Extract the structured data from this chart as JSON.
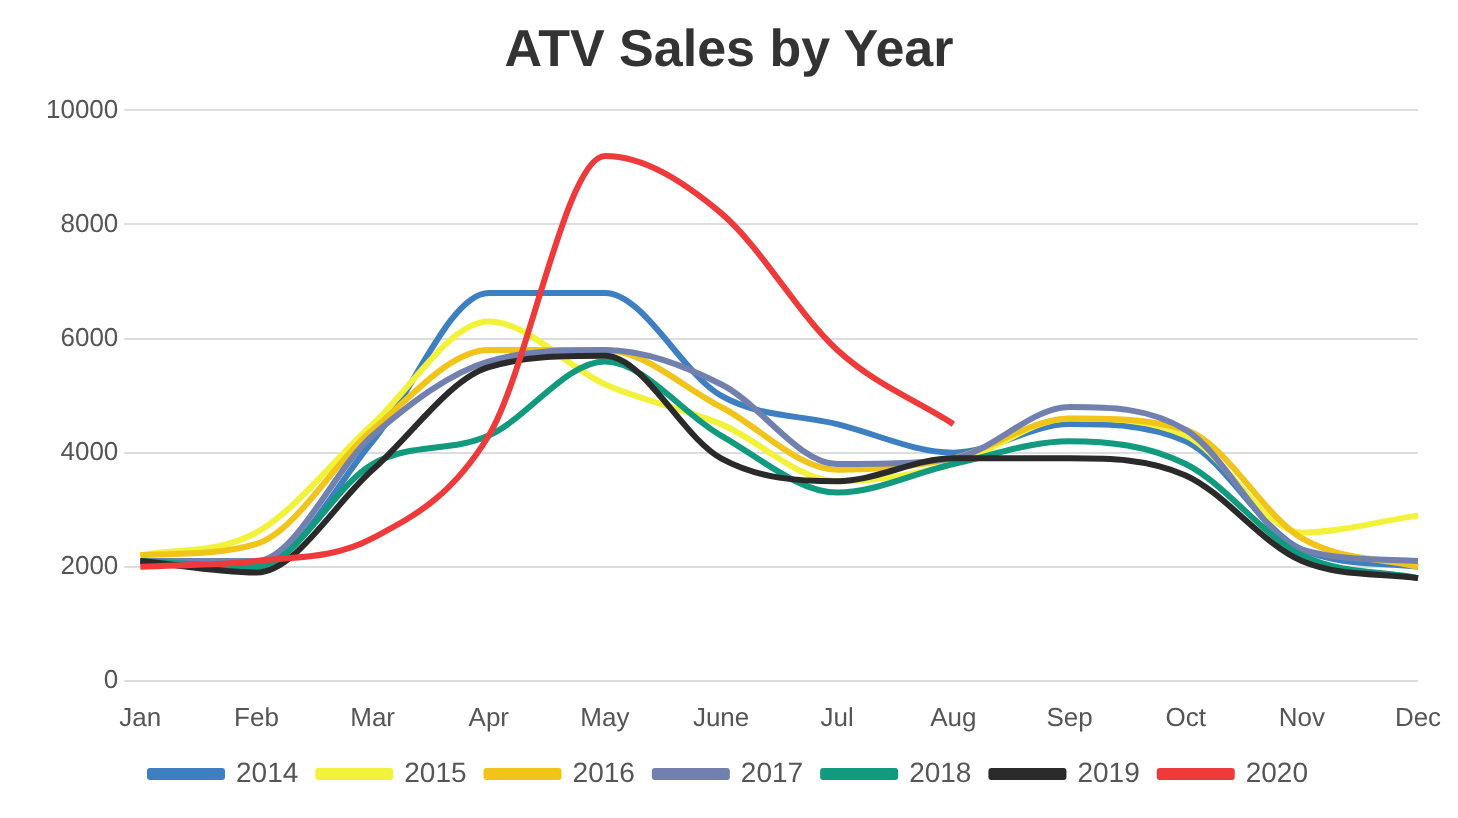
{
  "chart_data": {
    "type": "line",
    "title": "ATV Sales by Year",
    "categories": [
      "Jan",
      "Feb",
      "Mar",
      "Apr",
      "May",
      "June",
      "Jul",
      "Aug",
      "Sep",
      "Oct",
      "Nov",
      "Dec"
    ],
    "series": [
      {
        "name": "2014",
        "color": "#3d7fc1",
        "values": [
          2100,
          2000,
          4200,
          6800,
          6800,
          5000,
          4500,
          4000,
          4500,
          4200,
          2300,
          2000
        ]
      },
      {
        "name": "2015",
        "color": "#f2f23a",
        "values": [
          2200,
          2600,
          4500,
          6300,
          5200,
          4500,
          3500,
          3800,
          4600,
          4300,
          2600,
          2900
        ]
      },
      {
        "name": "2016",
        "color": "#f0c419",
        "values": [
          2200,
          2400,
          4400,
          5800,
          5800,
          4800,
          3700,
          3900,
          4600,
          4400,
          2500,
          2000
        ]
      },
      {
        "name": "2017",
        "color": "#7280b0",
        "values": [
          2100,
          2100,
          4300,
          5600,
          5800,
          5200,
          3800,
          3900,
          4800,
          4400,
          2300,
          2100
        ]
      },
      {
        "name": "2018",
        "color": "#119a7e",
        "values": [
          2100,
          2000,
          3800,
          4300,
          5600,
          4300,
          3300,
          3800,
          4200,
          3800,
          2200,
          1800
        ]
      },
      {
        "name": "2019",
        "color": "#2a2a2a",
        "values": [
          2100,
          1900,
          3700,
          5500,
          5700,
          3900,
          3500,
          3900,
          3900,
          3600,
          2100,
          1800
        ]
      },
      {
        "name": "2020",
        "color": "#ee3a3a",
        "values": [
          2000,
          2100,
          2500,
          4300,
          9200,
          8200,
          5800,
          4500,
          null,
          null,
          null,
          null
        ]
      }
    ],
    "ylim": [
      0,
      10000
    ],
    "yticks": [
      0,
      2000,
      4000,
      6000,
      8000,
      10000
    ],
    "grid": "y",
    "legend": "bottom",
    "marker": "none",
    "line_style": "solid"
  }
}
